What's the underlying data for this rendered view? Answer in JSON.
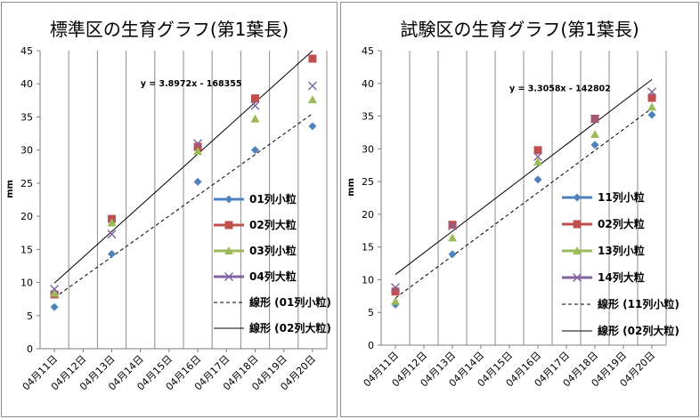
{
  "chart_data": [
    {
      "type": "scatter",
      "title": "標準区の生育グラフ(第1葉長)",
      "ylabel": "mm",
      "xlabel": "",
      "ylim": [
        0,
        45
      ],
      "y_ticks": [
        "0",
        "5",
        "10",
        "15",
        "20",
        "25",
        "30",
        "35",
        "40",
        "45"
      ],
      "categories": [
        "04月11日",
        "04月12日",
        "04月13日",
        "04月14日",
        "04月15日",
        "04月16日",
        "04月17日",
        "04月18日",
        "04月19日",
        "04月20日"
      ],
      "grid": "vertical",
      "series": [
        {
          "name": "01列小粒",
          "marker": "diamond",
          "color": "#4f81bd",
          "x": [
            "04月11日",
            "04月13日",
            "04月16日",
            "04月18日",
            "04月20日"
          ],
          "values": [
            6.3,
            14.3,
            25.2,
            30.0,
            33.6
          ]
        },
        {
          "name": "02列大粒",
          "marker": "square",
          "color": "#c0504d",
          "x": [
            "04月11日",
            "04月13日",
            "04月16日",
            "04月18日",
            "04月20日"
          ],
          "values": [
            8.2,
            19.6,
            30.5,
            37.8,
            43.8
          ]
        },
        {
          "name": "03列小粒",
          "marker": "triangle",
          "color": "#9bbb59",
          "x": [
            "04月11日",
            "04月13日",
            "04月16日",
            "04月18日",
            "04月20日"
          ],
          "values": [
            8.4,
            19.0,
            29.8,
            34.7,
            37.6
          ]
        },
        {
          "name": "04列大粒",
          "marker": "x",
          "color": "#8064a2",
          "x": [
            "04月11日",
            "04月13日",
            "04月16日",
            "04月18日",
            "04月20日"
          ],
          "values": [
            9.0,
            17.3,
            31.0,
            36.7,
            39.7
          ]
        }
      ],
      "trendlines": [
        {
          "name": "線形 (01列小粒)",
          "style": "dashed",
          "x": [
            "04月11日",
            "04月20日"
          ],
          "values": [
            7.7,
            35.5
          ]
        },
        {
          "name": "線形 (02列大粒)",
          "style": "solid",
          "x": [
            "04月11日",
            "04月20日"
          ],
          "values": [
            9.9,
            45.0
          ]
        }
      ],
      "equation": "y = 3.8972x - 168355",
      "equation_anchor": {
        "x": "04月14日",
        "y": 39.6
      },
      "legend_position": "right"
    },
    {
      "type": "scatter",
      "title": "試験区の生育グラフ(第1葉長)",
      "ylabel": "mm",
      "xlabel": "",
      "ylim": [
        0,
        45
      ],
      "y_ticks": [
        "0",
        "5",
        "10",
        "15",
        "20",
        "25",
        "30",
        "35",
        "40",
        "45"
      ],
      "categories": [
        "04月11日",
        "04月12日",
        "04月13日",
        "04月14日",
        "04月15日",
        "04月16日",
        "04月17日",
        "04月18日",
        "04月19日",
        "04月20日"
      ],
      "grid": "vertical",
      "series": [
        {
          "name": "11列小粒",
          "marker": "diamond",
          "color": "#4f81bd",
          "x": [
            "04月11日",
            "04月13日",
            "04月16日",
            "04月18日",
            "04月20日"
          ],
          "values": [
            6.2,
            13.9,
            25.3,
            30.6,
            35.2
          ]
        },
        {
          "name": "02列大粒",
          "marker": "square",
          "color": "#c0504d",
          "x": [
            "04月11日",
            "04月13日",
            "04月16日",
            "04月18日",
            "04月20日"
          ],
          "values": [
            8.2,
            18.4,
            29.8,
            34.6,
            37.8
          ]
        },
        {
          "name": "13列小粒",
          "marker": "triangle",
          "color": "#9bbb59",
          "x": [
            "04月11日",
            "04月13日",
            "04月16日",
            "04月18日",
            "04月20日"
          ],
          "values": [
            6.7,
            16.4,
            28.0,
            32.2,
            36.4
          ]
        },
        {
          "name": "14列大粒",
          "marker": "x",
          "color": "#8064a2",
          "x": [
            "04月11日",
            "04月13日",
            "04月16日",
            "04月18日",
            "04月20日"
          ],
          "values": [
            8.8,
            18.2,
            28.8,
            34.6,
            38.7
          ]
        }
      ],
      "trendlines": [
        {
          "name": "線形 (11列小粒)",
          "style": "dashed",
          "x": [
            "04月11日",
            "04月20日"
          ],
          "values": [
            7.2,
            36.2
          ]
        },
        {
          "name": "線形 (02列大粒)",
          "style": "solid",
          "x": [
            "04月11日",
            "04月20日"
          ],
          "values": [
            10.8,
            40.6
          ]
        }
      ],
      "equation": "y = 3.3058x - 142802",
      "equation_anchor": {
        "x": "04月15日",
        "y": 38.8
      },
      "legend_position": "right"
    }
  ]
}
